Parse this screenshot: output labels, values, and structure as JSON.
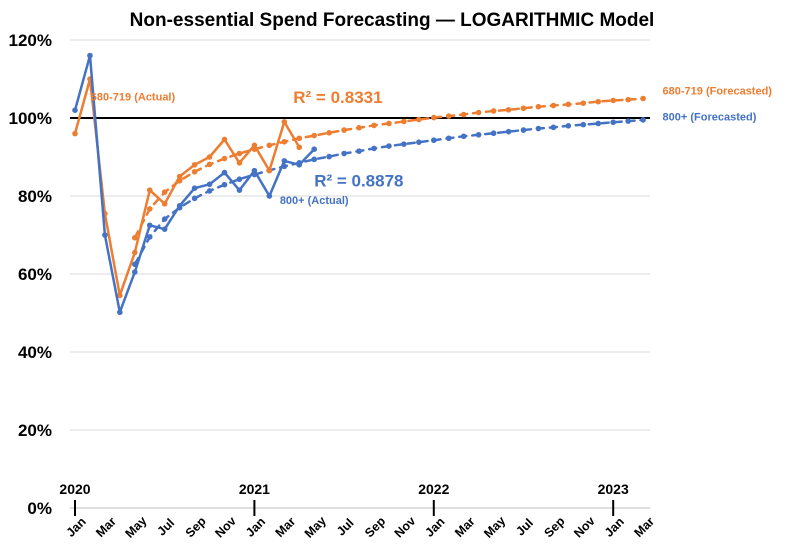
{
  "chart_data": {
    "type": "line",
    "title": "Non-essential Spend Forecasting — LOGARITHMIC Model",
    "ylim": [
      0,
      1.2
    ],
    "y_ticks": [
      "0%",
      "20%",
      "40%",
      "60%",
      "80%",
      "100%",
      "120%"
    ],
    "x_month_labels": [
      "Jan",
      "Mar",
      "May",
      "Jul",
      "Sep",
      "Nov",
      "Jan",
      "Mar",
      "May",
      "Jul",
      "Sep",
      "Nov",
      "Jan",
      "Mar",
      "May",
      "Jul",
      "Sep",
      "Nov",
      "Jan",
      "Mar"
    ],
    "x_month_index": [
      0,
      2,
      4,
      6,
      8,
      10,
      12,
      14,
      16,
      18,
      20,
      22,
      24,
      26,
      28,
      30,
      32,
      34,
      36,
      38
    ],
    "year_labels": [
      {
        "label": "2020",
        "month_index": 0
      },
      {
        "label": "2021",
        "month_index": 12
      },
      {
        "label": "2022",
        "month_index": 24
      },
      {
        "label": "2023",
        "month_index": 36
      }
    ],
    "reference_line": {
      "y": 1.0,
      "color": "#000000"
    },
    "series": [
      {
        "key": "orange_actual",
        "style": "actual",
        "color": "#ED7D31",
        "x": [
          0,
          1,
          2,
          3,
          4,
          5,
          6,
          7,
          8,
          9,
          10,
          11,
          12,
          13,
          14,
          15
        ],
        "y": [
          0.96,
          1.1,
          0.755,
          0.545,
          0.655,
          0.815,
          0.78,
          0.85,
          0.88,
          0.9,
          0.945,
          0.885,
          0.93,
          0.865,
          0.99,
          0.925
        ]
      },
      {
        "key": "blue_actual",
        "style": "actual",
        "color": "#4472C4",
        "x": [
          0,
          1,
          2,
          3,
          4,
          5,
          6,
          7,
          8,
          9,
          10,
          11,
          12,
          13,
          14,
          15,
          16
        ],
        "y": [
          1.02,
          1.16,
          0.7,
          0.502,
          0.605,
          0.725,
          0.715,
          0.775,
          0.82,
          0.83,
          0.86,
          0.815,
          0.865,
          0.8,
          0.89,
          0.88,
          0.92
        ]
      },
      {
        "key": "orange_forecast",
        "style": "forecast",
        "color": "#ED7D31",
        "x": [
          4,
          5,
          6,
          7,
          8,
          9,
          10,
          11,
          12,
          13,
          14,
          15,
          16,
          17,
          18,
          19,
          20,
          21,
          22,
          23,
          24,
          25,
          26,
          27,
          28,
          29,
          30,
          31,
          32,
          33,
          34,
          35,
          36,
          37,
          38
        ],
        "y": [
          0.693,
          0.767,
          0.81,
          0.839,
          0.862,
          0.881,
          0.896,
          0.909,
          0.92,
          0.93,
          0.939,
          0.948,
          0.955,
          0.962,
          0.969,
          0.975,
          0.981,
          0.986,
          0.991,
          0.996,
          1.001,
          1.005,
          1.009,
          1.014,
          1.018,
          1.021,
          1.025,
          1.029,
          1.032,
          1.035,
          1.038,
          1.042,
          1.045,
          1.047,
          1.05
        ]
      },
      {
        "key": "blue_forecast",
        "style": "forecast",
        "color": "#4472C4",
        "x": [
          4,
          5,
          6,
          7,
          8,
          9,
          10,
          11,
          12,
          13,
          14,
          15,
          16,
          17,
          18,
          19,
          20,
          21,
          22,
          23,
          24,
          25,
          26,
          27,
          28,
          29,
          30,
          31,
          32,
          33,
          34,
          35,
          36,
          37,
          38
        ],
        "y": [
          0.625,
          0.695,
          0.741,
          0.77,
          0.794,
          0.813,
          0.829,
          0.843,
          0.855,
          0.866,
          0.876,
          0.885,
          0.894,
          0.901,
          0.909,
          0.915,
          0.922,
          0.928,
          0.933,
          0.938,
          0.943,
          0.948,
          0.953,
          0.957,
          0.961,
          0.965,
          0.969,
          0.973,
          0.976,
          0.98,
          0.983,
          0.986,
          0.989,
          0.992,
          0.995
        ]
      }
    ],
    "annotations": [
      {
        "key": "label_orange_actual",
        "text": "680-719 (Actual)",
        "color": "#ED7D31",
        "x": 6.7,
        "y": 1.045,
        "kind": "anno"
      },
      {
        "key": "label_orange_forecast",
        "text": "680-719 (Forecasted)",
        "color": "#ED7D31",
        "x": 39.3,
        "y": 1.06,
        "kind": "anno"
      },
      {
        "key": "label_blue_actual",
        "text": "800+ (Actual)",
        "color": "#4472C4",
        "x": 13.7,
        "y": 0.78,
        "kind": "anno"
      },
      {
        "key": "label_blue_forecast",
        "text": "800+ (Forecasted)",
        "color": "#4472C4",
        "x": 39.3,
        "y": 0.993,
        "kind": "anno"
      }
    ],
    "r2": [
      {
        "key": "r2_orange",
        "text": "R² = 0.8331",
        "color": "#ED7D31",
        "x": 14.6,
        "y": 1.038
      },
      {
        "key": "r2_blue",
        "text": "R² = 0.8878",
        "color": "#4472C4",
        "x": 16.0,
        "y": 0.825
      }
    ]
  }
}
